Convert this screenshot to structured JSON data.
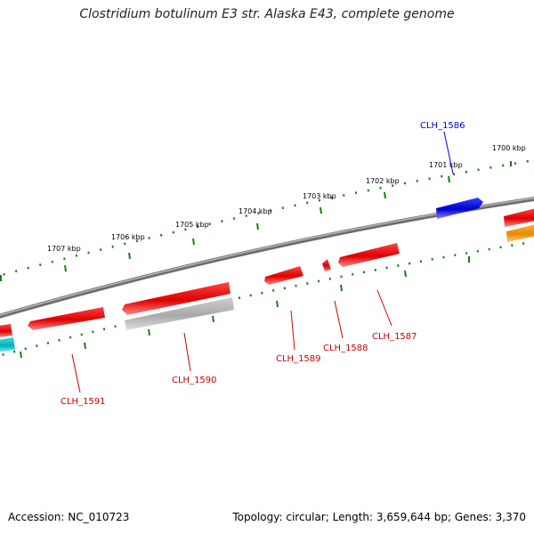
{
  "title": "Clostridium botulinum E3 str. Alaska E43, complete genome",
  "footer": {
    "accession": "Accession: NC_010723",
    "summary": "Topology: circular; Length: 3,659,644 bp; Genes: 3,370"
  },
  "ticks": [
    {
      "label": "1700 kbp"
    },
    {
      "label": "1701 kbp"
    },
    {
      "label": "1702 kbp"
    },
    {
      "label": "1703 kbp"
    },
    {
      "label": "1704 kbp"
    },
    {
      "label": "1705 kbp"
    },
    {
      "label": "1706 kbp"
    },
    {
      "label": "1707 kbp"
    }
  ],
  "genes": [
    {
      "label": "CLH_1586",
      "color": "#0000cc"
    },
    {
      "label": "CLH_1587",
      "color": "#cc0000"
    },
    {
      "label": "CLH_1588",
      "color": "#cc0000"
    },
    {
      "label": "CLH_1589",
      "color": "#cc0000"
    },
    {
      "label": "CLH_1590",
      "color": "#cc0000"
    },
    {
      "label": "CLH_1591",
      "color": "#cc0000"
    }
  ],
  "colors": {
    "backbone": "#8a8a8a",
    "tick": "#1a7a1a",
    "cds_red": "#ee0000",
    "cds_blue": "#0000ee",
    "cds_gray": "#b0b0b0",
    "cds_cyan": "#00c0c8",
    "cds_orange": "#ff9900"
  }
}
